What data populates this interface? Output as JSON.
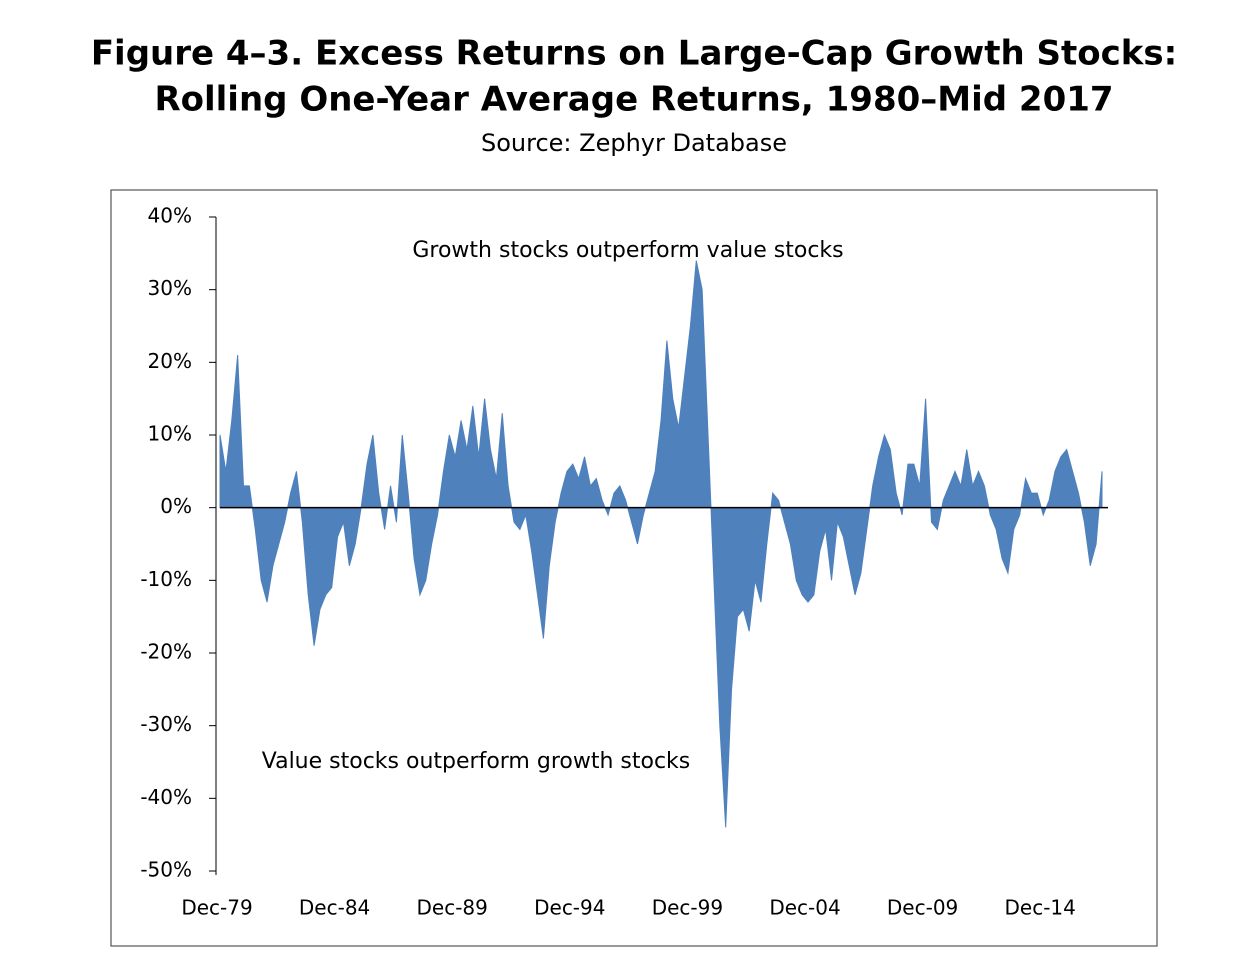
{
  "chart_data": {
    "type": "area",
    "title": [
      "Figure 4–3. Excess Returns on Large-Cap Growth Stocks:",
      "Rolling One-Year Average Returns, 1980–Mid 2017"
    ],
    "subtitle": "Source: Zephyr Database",
    "annotations": [
      "Growth stocks outperform value stocks",
      "Value stocks outperform growth stocks"
    ],
    "color": "#4f81bd",
    "ylim": [
      -50,
      40
    ],
    "yticks": [
      {
        "value": 40,
        "label": "40%"
      },
      {
        "value": 30,
        "label": "30%"
      },
      {
        "value": 20,
        "label": "20%"
      },
      {
        "value": 10,
        "label": "10%"
      },
      {
        "value": 0,
        "label": "0%"
      },
      {
        "value": -10,
        "label": "-10%"
      },
      {
        "value": -20,
        "label": "-20%"
      },
      {
        "value": -30,
        "label": "-30%"
      },
      {
        "value": -40,
        "label": "-40%"
      },
      {
        "value": -50,
        "label": "-50%"
      }
    ],
    "categories": [
      "Dec-79",
      null,
      null,
      null,
      null,
      null,
      null,
      null,
      null,
      null,
      null,
      null,
      null,
      null,
      null,
      null,
      null,
      null,
      null,
      null,
      "Dec-84",
      null,
      null,
      null,
      null,
      null,
      null,
      null,
      null,
      null,
      null,
      null,
      null,
      null,
      null,
      null,
      null,
      null,
      null,
      null,
      "Dec-89",
      null,
      null,
      null,
      null,
      null,
      null,
      null,
      null,
      null,
      null,
      null,
      null,
      null,
      null,
      null,
      null,
      null,
      null,
      null,
      "Dec-94",
      null,
      null,
      null,
      null,
      null,
      null,
      null,
      null,
      null,
      null,
      null,
      null,
      null,
      null,
      null,
      null,
      null,
      null,
      null,
      "Dec-99",
      null,
      null,
      null,
      null,
      null,
      null,
      null,
      null,
      null,
      null,
      null,
      null,
      null,
      null,
      null,
      null,
      null,
      null,
      null,
      "Dec-04",
      null,
      null,
      null,
      null,
      null,
      null,
      null,
      null,
      null,
      null,
      null,
      null,
      null,
      null,
      null,
      null,
      null,
      null,
      null,
      "Dec-09",
      null,
      null,
      null,
      null,
      null,
      null,
      null,
      null,
      null,
      null,
      null,
      null,
      null,
      null,
      null,
      null,
      null,
      null,
      null,
      "Dec-14",
      null,
      null,
      null,
      null,
      null,
      null,
      null,
      null,
      null,
      null
    ],
    "values": [
      10,
      5,
      12,
      21,
      3,
      3,
      -3,
      -10,
      -13,
      -8,
      -5,
      -2,
      2,
      5,
      -2,
      -12,
      -19,
      -14,
      -12,
      -11,
      -4,
      -2,
      -8,
      -5,
      0,
      6,
      10,
      2,
      -3,
      3,
      -2,
      10,
      2,
      -7,
      -12,
      -10,
      -5,
      -1,
      5,
      10,
      7,
      12,
      8,
      14,
      7,
      15,
      8,
      4,
      13,
      3,
      -2,
      -3,
      -1,
      -6,
      -12,
      -18,
      -8,
      -2,
      2,
      5,
      6,
      4,
      7,
      3,
      4,
      1,
      -1,
      2,
      3,
      1,
      -2,
      -5,
      -1,
      2,
      5,
      12,
      23,
      15,
      11,
      18,
      25,
      34,
      30,
      10,
      -10,
      -30,
      -44,
      -25,
      -15,
      -14,
      -17,
      -10,
      -13,
      -5,
      2,
      1,
      -2,
      -5,
      -10,
      -12,
      -13,
      -12,
      -6,
      -3,
      -10,
      -2,
      -4,
      -8,
      -12,
      -9,
      -3,
      3,
      7,
      10,
      8,
      2,
      -1,
      6,
      6,
      3,
      15,
      -2,
      -3,
      1,
      3,
      5,
      3,
      8,
      3,
      5,
      3,
      -1,
      -3,
      -7,
      -9,
      -3,
      -1,
      4,
      2,
      2,
      -1,
      1,
      5,
      7,
      8,
      5,
      2,
      -2,
      -8,
      -5,
      5
    ]
  }
}
